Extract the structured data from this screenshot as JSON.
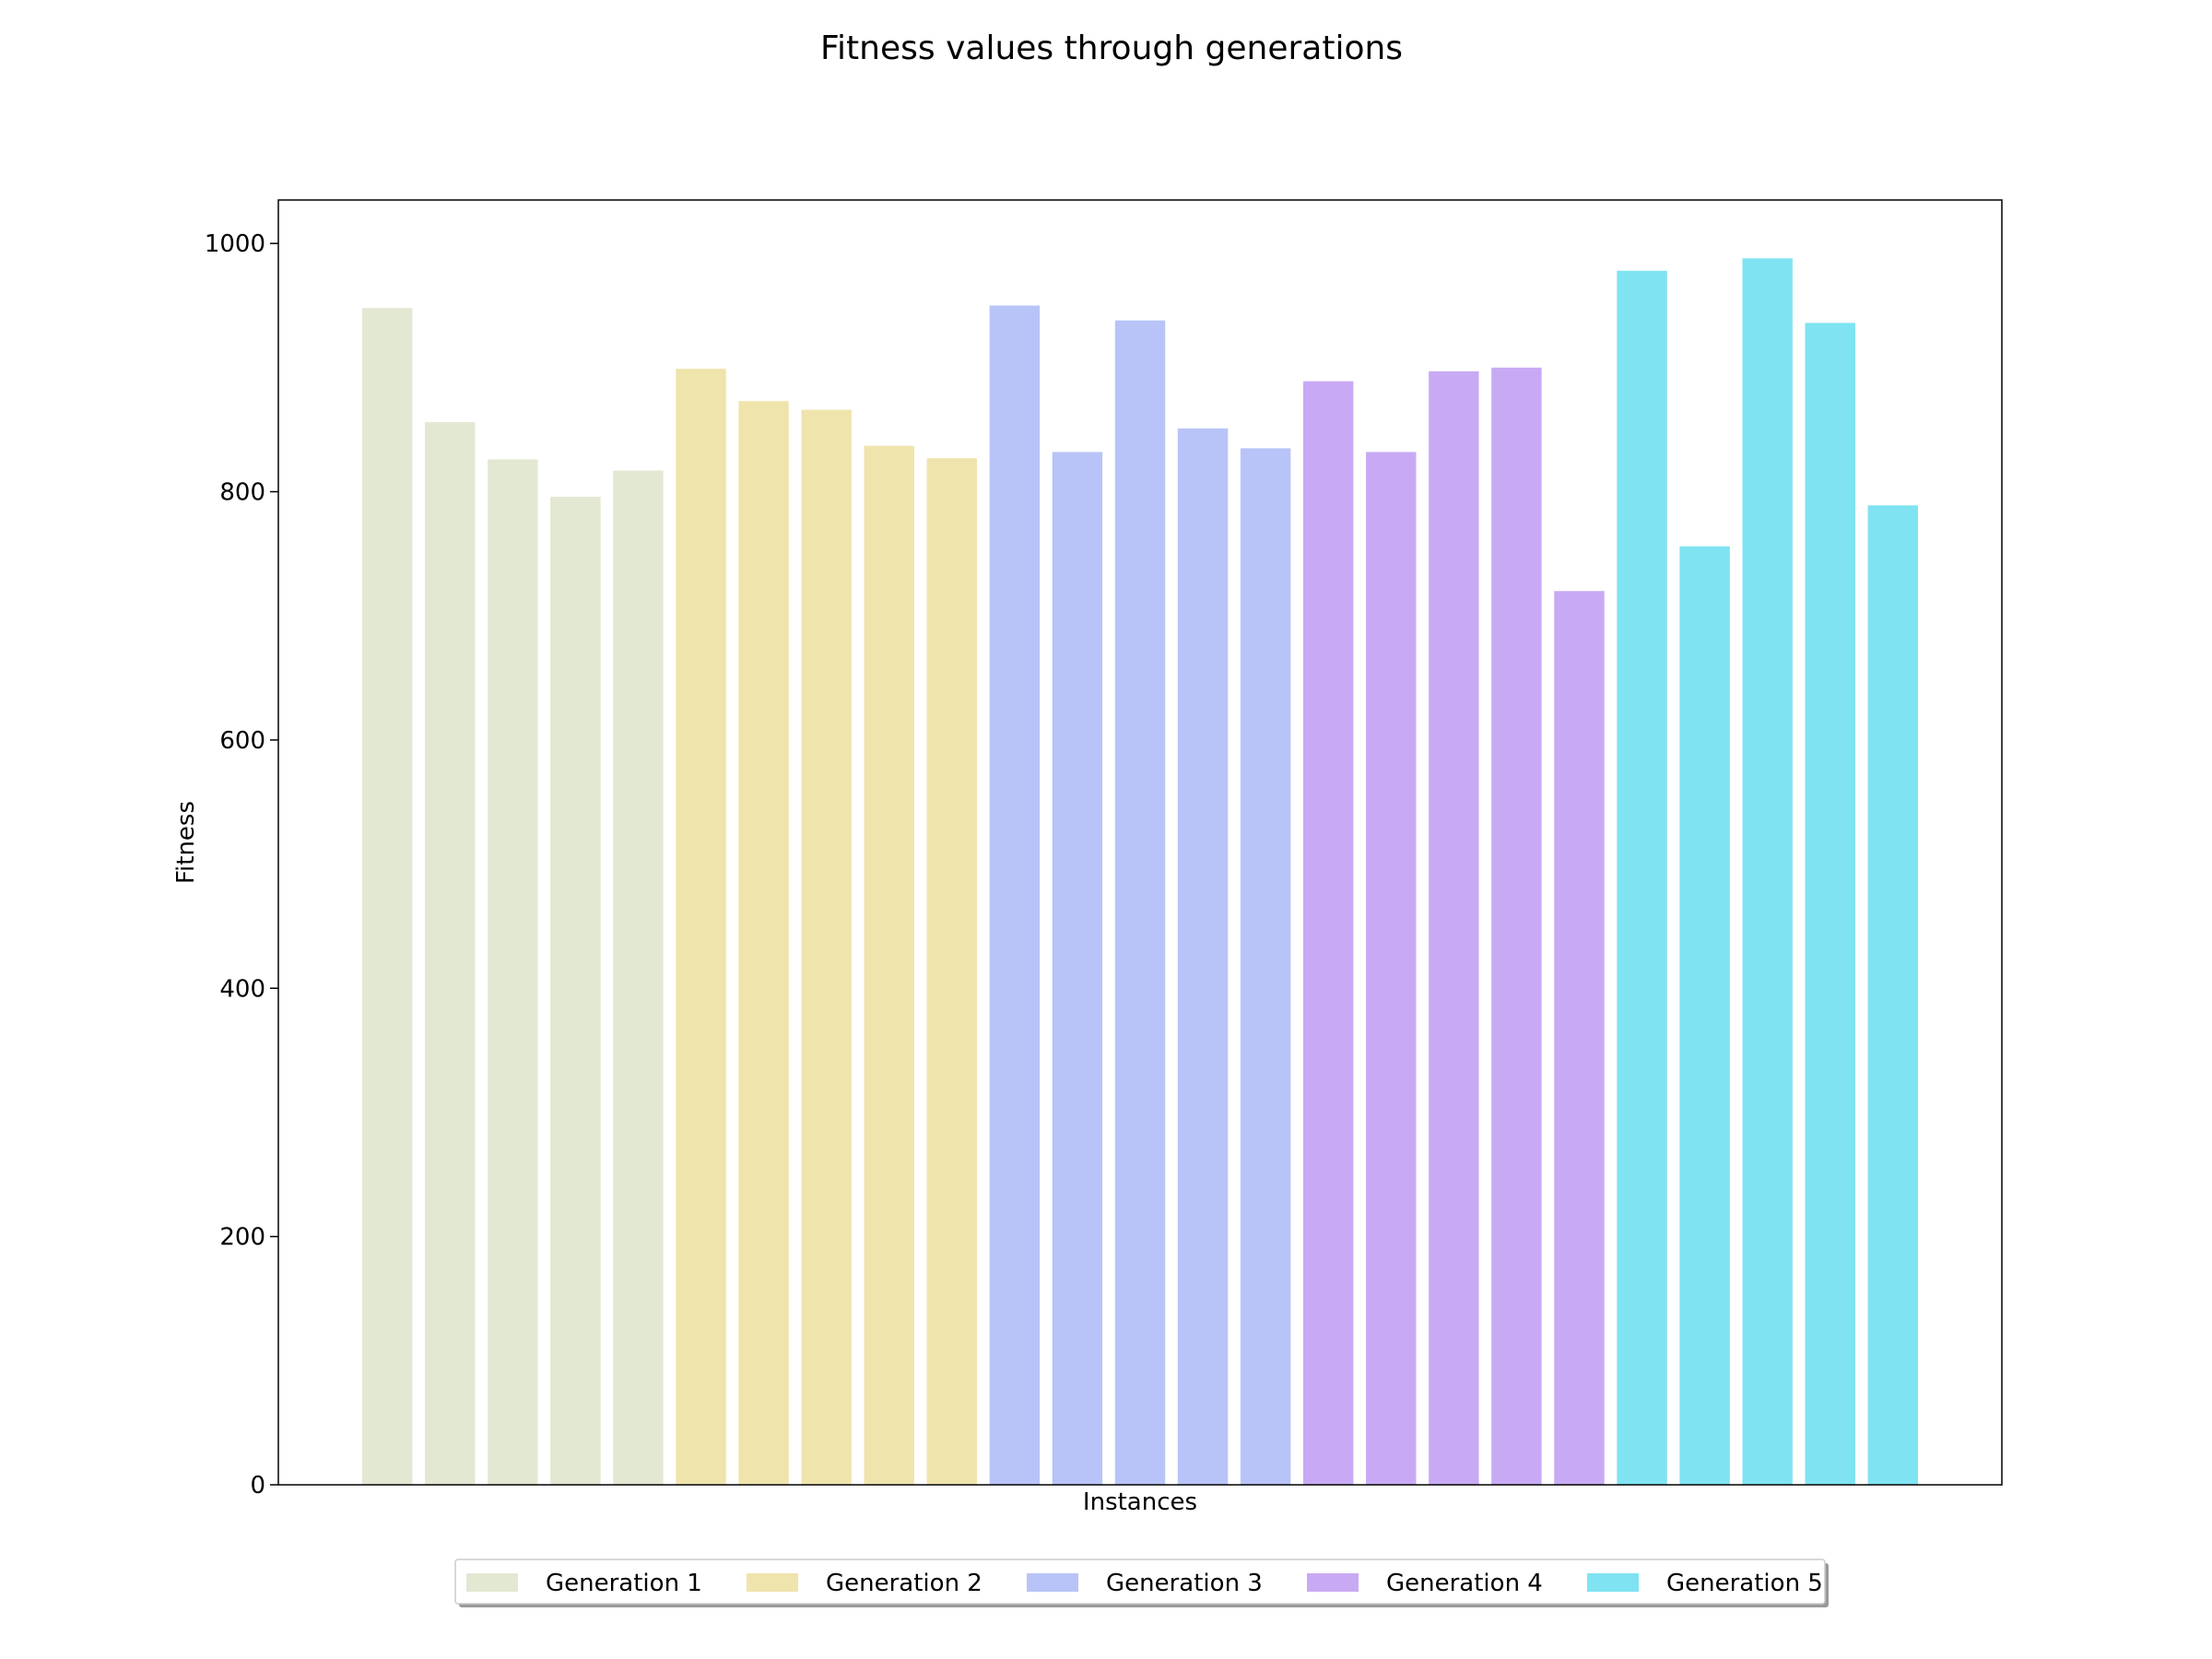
{
  "chart_data": {
    "type": "bar",
    "title": "Fitness values through generations",
    "xlabel": "Instances",
    "ylabel": "Fitness",
    "ylim": [
      0,
      1035
    ],
    "yticks": [
      0,
      200,
      400,
      600,
      800,
      1000
    ],
    "grid": false,
    "legend_position": "bottom-center",
    "series": [
      {
        "name": "Generation 1",
        "color": "#e2e8d2",
        "values": [
          948,
          856,
          826,
          796,
          817
        ]
      },
      {
        "name": "Generation 2",
        "color": "#f0e4ad",
        "values": [
          899,
          873,
          866,
          837,
          827
        ]
      },
      {
        "name": "Generation 3",
        "color": "#b8c4f8",
        "values": [
          950,
          832,
          938,
          851,
          835
        ]
      },
      {
        "name": "Generation 4",
        "color": "#c8aaf4",
        "values": [
          889,
          832,
          897,
          900,
          720
        ]
      },
      {
        "name": "Generation 5",
        "color": "#80e3f1",
        "values": [
          978,
          756,
          988,
          936,
          789
        ]
      }
    ]
  }
}
